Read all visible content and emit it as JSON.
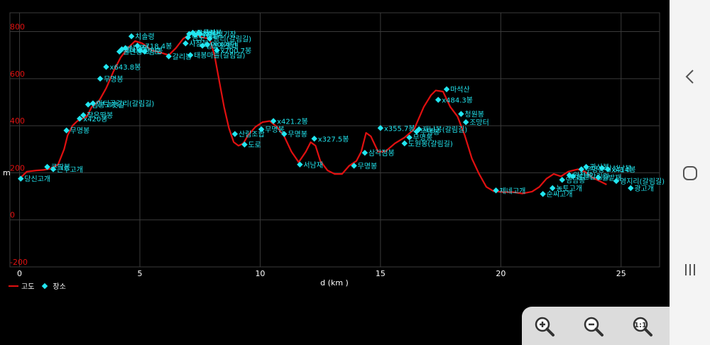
{
  "chart_data": {
    "type": "line",
    "xlabel": "d (km )",
    "ylabel": "m",
    "xlim": [
      -0.4,
      26.6
    ],
    "ylim": [
      -200,
      880
    ],
    "xticks": [
      "0",
      "5",
      "10",
      "15",
      "20",
      "25"
    ],
    "xtick_values": [
      0,
      5,
      10,
      15,
      20,
      25
    ],
    "yticks": [
      "-200",
      "0",
      "200",
      "400",
      "600",
      "800"
    ],
    "ytick_values": [
      -200,
      0,
      200,
      400,
      600,
      800
    ],
    "grid": true,
    "legend_position": "bottom-left",
    "series": [
      {
        "name": "고도",
        "color": "#e01010",
        "points": [
          [
            0,
            175
          ],
          [
            0.3,
            205
          ],
          [
            0.7,
            210
          ],
          [
            1.0,
            212
          ],
          [
            1.3,
            218
          ],
          [
            1.6,
            235
          ],
          [
            1.85,
            300
          ],
          [
            2.0,
            360
          ],
          [
            2.2,
            400
          ],
          [
            2.4,
            420
          ],
          [
            2.6,
            430
          ],
          [
            2.8,
            440
          ],
          [
            3.0,
            480
          ],
          [
            3.3,
            505
          ],
          [
            3.6,
            560
          ],
          [
            3.9,
            630
          ],
          [
            4.2,
            690
          ],
          [
            4.5,
            730
          ],
          [
            4.8,
            760
          ],
          [
            5.1,
            750
          ],
          [
            5.5,
            720
          ],
          [
            5.9,
            710
          ],
          [
            6.2,
            700
          ],
          [
            6.5,
            730
          ],
          [
            6.8,
            770
          ],
          [
            7.1,
            790
          ],
          [
            7.3,
            790
          ],
          [
            7.6,
            775
          ],
          [
            7.9,
            770
          ],
          [
            8.1,
            700
          ],
          [
            8.3,
            590
          ],
          [
            8.5,
            480
          ],
          [
            8.7,
            390
          ],
          [
            8.9,
            330
          ],
          [
            9.1,
            315
          ],
          [
            9.3,
            325
          ],
          [
            9.5,
            360
          ],
          [
            9.8,
            395
          ],
          [
            10.1,
            415
          ],
          [
            10.4,
            420
          ],
          [
            10.7,
            395
          ],
          [
            11.0,
            355
          ],
          [
            11.3,
            290
          ],
          [
            11.6,
            245
          ],
          [
            11.9,
            290
          ],
          [
            12.1,
            330
          ],
          [
            12.3,
            315
          ],
          [
            12.5,
            250
          ],
          [
            12.8,
            210
          ],
          [
            13.1,
            195
          ],
          [
            13.4,
            195
          ],
          [
            13.7,
            230
          ],
          [
            14.0,
            250
          ],
          [
            14.2,
            290
          ],
          [
            14.4,
            370
          ],
          [
            14.6,
            355
          ],
          [
            14.9,
            290
          ],
          [
            15.2,
            290
          ],
          [
            15.6,
            325
          ],
          [
            16.0,
            350
          ],
          [
            16.4,
            385
          ],
          [
            16.8,
            480
          ],
          [
            17.1,
            530
          ],
          [
            17.3,
            550
          ],
          [
            17.6,
            545
          ],
          [
            17.9,
            480
          ],
          [
            18.2,
            440
          ],
          [
            18.5,
            360
          ],
          [
            18.8,
            260
          ],
          [
            19.1,
            195
          ],
          [
            19.4,
            140
          ],
          [
            19.7,
            122
          ],
          [
            20.1,
            118
          ],
          [
            20.5,
            118
          ],
          [
            20.9,
            112
          ],
          [
            21.3,
            120
          ],
          [
            21.6,
            140
          ],
          [
            21.9,
            175
          ],
          [
            22.2,
            195
          ],
          [
            22.5,
            185
          ],
          [
            22.8,
            205
          ],
          [
            23.2,
            215
          ],
          [
            23.5,
            205
          ],
          [
            23.8,
            180
          ],
          [
            24.1,
            165
          ],
          [
            24.4,
            150
          ]
        ]
      }
    ],
    "places_legend": "장소",
    "places": [
      {
        "label": "당신고개",
        "x": 0.05,
        "y": 175
      },
      {
        "label": "큰딱봉",
        "x": 1.15,
        "y": 225
      },
      {
        "label": "큰두고개",
        "x": 1.4,
        "y": 215
      },
      {
        "label": "무명봉",
        "x": 1.95,
        "y": 380
      },
      {
        "label": "x420봉",
        "x": 2.5,
        "y": 430
      },
      {
        "label": "작은딱봉",
        "x": 2.65,
        "y": 445
      },
      {
        "label": "삼봉고갯길",
        "x": 2.85,
        "y": 490
      },
      {
        "label": "한티골갈리(갈림길)",
        "x": 3.05,
        "y": 495
      },
      {
        "label": "무명봉",
        "x": 3.35,
        "y": 600
      },
      {
        "label": "x643.8봉",
        "x": 3.6,
        "y": 650
      },
      {
        "label": "울안봉",
        "x": 4.15,
        "y": 715
      },
      {
        "label": "광산봉",
        "x": 4.25,
        "y": 725
      },
      {
        "label": "삼정봉",
        "x": 4.4,
        "y": 730
      },
      {
        "label": "x718.4봉",
        "x": 4.9,
        "y": 740
      },
      {
        "label": "치솔령",
        "x": 4.65,
        "y": 780
      },
      {
        "label": "삼리봉",
        "x": 5.0,
        "y": 720
      },
      {
        "label": "임도",
        "x": 5.2,
        "y": 715
      },
      {
        "label": "갈리봉",
        "x": 6.2,
        "y": 695
      },
      {
        "label": "사찰봉",
        "x": 6.9,
        "y": 750
      },
      {
        "label": "임도",
        "x": 7.0,
        "y": 775
      },
      {
        "label": "운곡봉",
        "x": 7.05,
        "y": 790
      },
      {
        "label": "구름산",
        "x": 7.2,
        "y": 795
      },
      {
        "label": "만경봉",
        "x": 7.3,
        "y": 785
      },
      {
        "label": "사랑봉",
        "x": 7.45,
        "y": 795
      },
      {
        "label": "향봉전망대",
        "x": 7.6,
        "y": 740
      },
      {
        "label": "연예계단",
        "x": 7.8,
        "y": 745
      },
      {
        "label": "x700.7봉",
        "x": 8.2,
        "y": 720
      },
      {
        "label": "태봉마을(갈림길)",
        "x": 7.1,
        "y": 700
      },
      {
        "label": "새롬빌기장",
        "x": 7.5,
        "y": 790
      },
      {
        "label": "봉리(갈림길)",
        "x": 7.9,
        "y": 770
      },
      {
        "label": "산림조합",
        "x": 8.95,
        "y": 365
      },
      {
        "label": "도로",
        "x": 9.35,
        "y": 320
      },
      {
        "label": "무명봉",
        "x": 10.05,
        "y": 385
      },
      {
        "label": "x421.2봉",
        "x": 10.55,
        "y": 420
      },
      {
        "label": "무명봉",
        "x": 11.0,
        "y": 365
      },
      {
        "label": "x327.5봉",
        "x": 12.25,
        "y": 345
      },
      {
        "label": "서남재",
        "x": 11.65,
        "y": 235
      },
      {
        "label": "무명봉",
        "x": 13.9,
        "y": 230
      },
      {
        "label": "삼각점봉",
        "x": 14.35,
        "y": 285
      },
      {
        "label": "x355.7봉",
        "x": 15.0,
        "y": 390
      },
      {
        "label": "도원봉(갈림길)",
        "x": 16.0,
        "y": 325
      },
      {
        "label": "무명봉",
        "x": 16.2,
        "y": 350
      },
      {
        "label": "무명봉",
        "x": 16.5,
        "y": 375
      },
      {
        "label": "재남봉(갈림길)",
        "x": 16.6,
        "y": 385
      },
      {
        "label": "x484.3봉",
        "x": 17.4,
        "y": 510
      },
      {
        "label": "마석산",
        "x": 17.75,
        "y": 555
      },
      {
        "label": "청원봉",
        "x": 18.35,
        "y": 450
      },
      {
        "label": "조망터",
        "x": 18.55,
        "y": 415
      },
      {
        "label": "제네고개",
        "x": 19.8,
        "y": 125
      },
      {
        "label": "순씨고개",
        "x": 21.75,
        "y": 110
      },
      {
        "label": "농토고개",
        "x": 22.15,
        "y": 135
      },
      {
        "label": "영남봉",
        "x": 22.55,
        "y": 170
      },
      {
        "label": "원전봉",
        "x": 22.85,
        "y": 190
      },
      {
        "label": "봉분갈림길",
        "x": 23.0,
        "y": 185
      },
      {
        "label": "무명봉",
        "x": 23.35,
        "y": 215
      },
      {
        "label": "관산봉",
        "x": 23.55,
        "y": 225
      },
      {
        "label": "삼성남봉",
        "x": 24.2,
        "y": 220
      },
      {
        "label": "x414봉",
        "x": 24.45,
        "y": 215
      },
      {
        "label": "한밭재",
        "x": 24.05,
        "y": 180
      },
      {
        "label": "영지리(갈림길)",
        "x": 24.8,
        "y": 165
      },
      {
        "label": "광고개",
        "x": 25.4,
        "y": 135
      }
    ]
  },
  "nav": {
    "back": "back-icon",
    "home": "home-icon",
    "recents": "recents-icon"
  },
  "zoom_controls": [
    "zoom-in-icon",
    "zoom-out-icon",
    "zoom-fit-icon"
  ]
}
